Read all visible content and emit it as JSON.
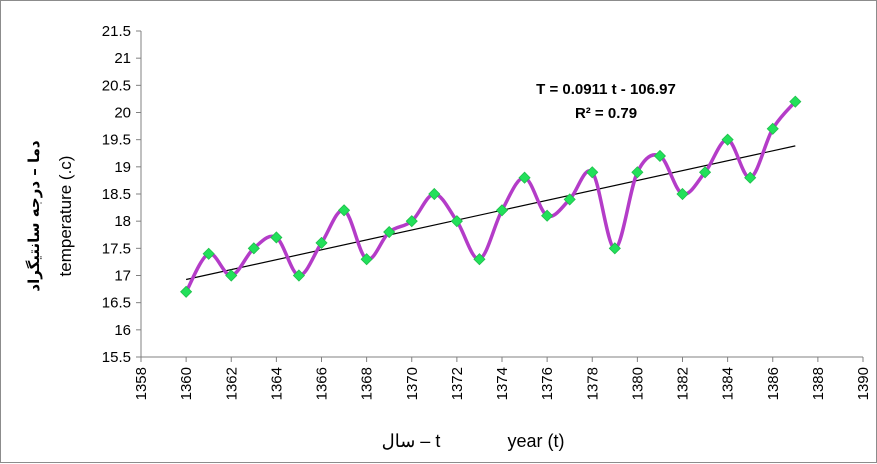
{
  "chart_data": {
    "type": "scatter",
    "title": "",
    "ylabel_persian": "دما – درجه سانتیگراد",
    "ylabel": "temperature (.c)",
    "xlabel_persian": "t – سال",
    "xlabel": "year (t)",
    "xlim": [
      1358,
      1390
    ],
    "ylim": [
      15.5,
      21.5
    ],
    "x_ticks": [
      1358,
      1360,
      1362,
      1364,
      1366,
      1368,
      1370,
      1372,
      1374,
      1376,
      1378,
      1380,
      1382,
      1384,
      1386,
      1388,
      1390
    ],
    "y_ticks": [
      15.5,
      16,
      16.5,
      17,
      17.5,
      18,
      18.5,
      19,
      19.5,
      20,
      20.5,
      21,
      21.5
    ],
    "grid": false,
    "series": [
      {
        "style": "smooth line with diamond markers",
        "line_color": "#b43cc8",
        "marker_color": "#22e05a",
        "x": [
          1360,
          1361,
          1362,
          1363,
          1364,
          1365,
          1366,
          1367,
          1368,
          1369,
          1370,
          1371,
          1372,
          1373,
          1374,
          1375,
          1376,
          1377,
          1378,
          1379,
          1380,
          1381,
          1382,
          1383,
          1384,
          1385,
          1386,
          1387
        ],
        "y": [
          16.7,
          17.4,
          17.0,
          17.5,
          17.7,
          17.0,
          17.6,
          18.2,
          17.3,
          17.8,
          18.0,
          18.5,
          18.0,
          17.3,
          18.2,
          18.8,
          18.1,
          18.4,
          18.9,
          17.5,
          18.9,
          19.2,
          18.5,
          18.9,
          19.5,
          18.8,
          19.7,
          20.2
        ]
      }
    ],
    "trendline": {
      "type": "linear",
      "color": "#000000",
      "slope": 0.0911,
      "intercept": -106.97,
      "x_range": [
        1360,
        1387
      ]
    },
    "annotations": {
      "equation": "T = 0.0911 t - 106.97",
      "r_squared": "R² = 0.79"
    }
  }
}
